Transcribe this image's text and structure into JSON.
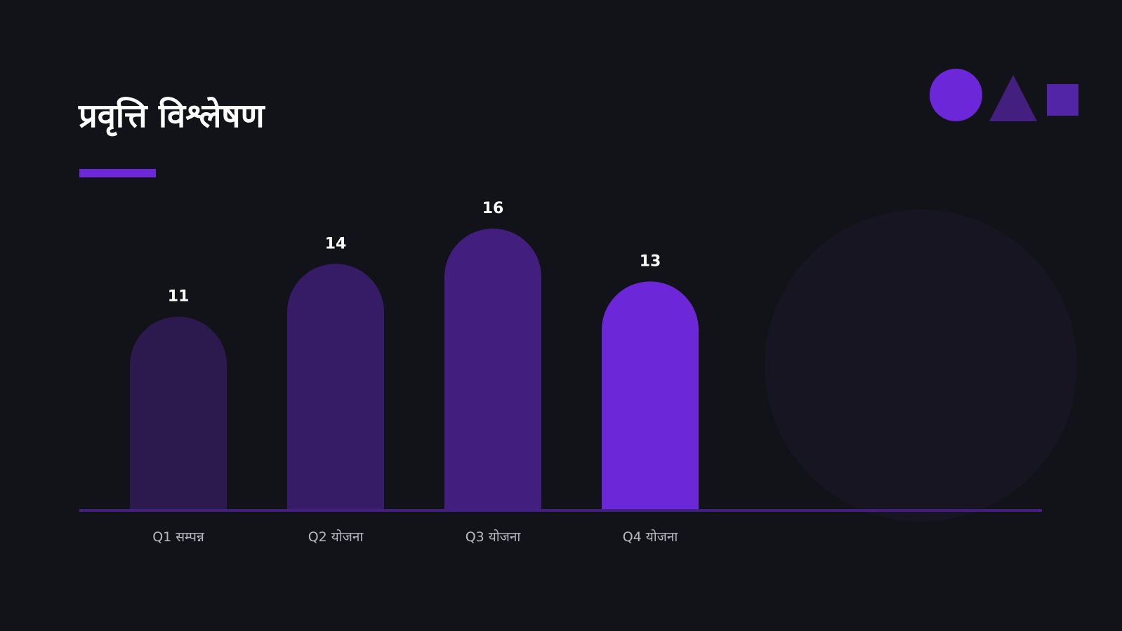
{
  "slide": {
    "title": "प्रवृत्ति विश्लेषण"
  },
  "colors": {
    "background": "#121318",
    "accent": "#6c27d9",
    "baseline": "#43207f",
    "label": "#b9b7c2",
    "value_label": "#ffffff",
    "bars": [
      "#2c1a4e",
      "#361c67",
      "#421f7f",
      "#6c27d9"
    ]
  },
  "chart_data": {
    "type": "bar",
    "categories": [
      "Q1 सम्पन्न",
      "Q2 योजना",
      "Q3 योजना",
      "Q4 योजना"
    ],
    "values": [
      11,
      14,
      16,
      13
    ],
    "data_labels": [
      "11",
      "14",
      "16",
      "13"
    ],
    "title": "",
    "xlabel": "",
    "ylabel": "",
    "ylim": [
      0,
      16
    ],
    "grid": false,
    "legend": "none"
  }
}
